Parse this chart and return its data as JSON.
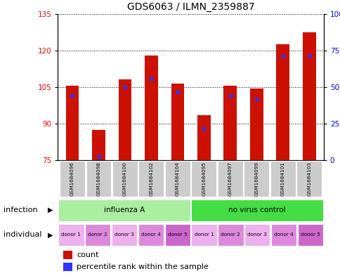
{
  "title": "GDS6063 / ILMN_2359887",
  "samples": [
    "GSM1684096",
    "GSM1684098",
    "GSM1684100",
    "GSM1684102",
    "GSM1684104",
    "GSM1684095",
    "GSM1684097",
    "GSM1684099",
    "GSM1684101",
    "GSM1684103"
  ],
  "bar_bottoms": [
    75,
    75,
    75,
    75,
    75,
    75,
    75,
    75,
    75,
    75
  ],
  "bar_tops": [
    105.5,
    87.5,
    108.0,
    118.0,
    106.5,
    93.5,
    105.5,
    104.5,
    122.5,
    127.5
  ],
  "blue_positions": [
    101.5,
    76.5,
    105.0,
    108.5,
    103.0,
    88.0,
    101.5,
    100.0,
    117.5,
    118.0
  ],
  "ylim": [
    75,
    135
  ],
  "yticks_left": [
    75,
    90,
    105,
    120,
    135
  ],
  "yticks_right": [
    0,
    25,
    50,
    75,
    100
  ],
  "ytick_right_labels": [
    "0",
    "25",
    "50",
    "75",
    "100%"
  ],
  "bar_color": "#CC1100",
  "blue_color": "#3333FF",
  "bar_width": 0.5,
  "infection_groups": [
    {
      "label": "influenza A",
      "start": 0,
      "end": 5,
      "color": "#AAEEA0"
    },
    {
      "label": "no virus control",
      "start": 5,
      "end": 10,
      "color": "#44DD44"
    }
  ],
  "individual_labels": [
    "donor 1",
    "donor 2",
    "donor 3",
    "donor 4",
    "donor 5",
    "donor 1",
    "donor 2",
    "donor 3",
    "donor 4",
    "donor 5"
  ],
  "individual_colors": [
    "#EEB0EE",
    "#DD88DD",
    "#EEB0EE",
    "#DD88DD",
    "#CC66CC",
    "#EEB0EE",
    "#DD88DD",
    "#EEB0EE",
    "#DD88DD",
    "#CC66CC"
  ],
  "infection_label": "infection",
  "individual_label": "individual",
  "legend_count": "count",
  "legend_percentile": "percentile rank within the sample",
  "sample_box_color": "#CCCCCC",
  "title_fontsize": 10
}
